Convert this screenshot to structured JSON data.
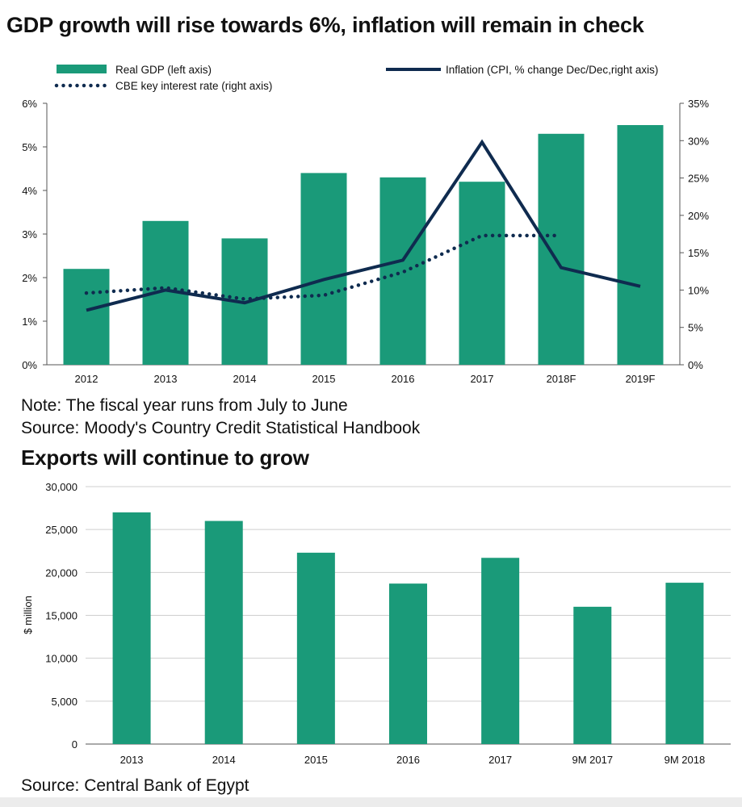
{
  "colors": {
    "bar": "#1a9a79",
    "line": "#0f2b4f",
    "axis": "#555555",
    "grid": "#cfcfcf"
  },
  "chart1_title": "GDP growth will rise towards 6%, inflation will remain in check",
  "chart1_note": "Note: The fiscal year runs from July to June",
  "chart1_source": "Source: Moody's Country Credit Statistical Handbook",
  "chart2_title": "Exports will continue to grow",
  "chart2_source": "Source: Central Bank of Egypt",
  "chart_data": [
    {
      "type": "bar",
      "title": "GDP growth will rise towards 6%, inflation will remain in check",
      "categories": [
        "2012",
        "2013",
        "2014",
        "2015",
        "2016",
        "2017",
        "2018F",
        "2019F"
      ],
      "series": [
        {
          "name": "Real GDP (left axis)",
          "kind": "bar",
          "axis": "left",
          "values": [
            2.2,
            3.3,
            2.9,
            4.4,
            4.3,
            4.2,
            5.3,
            5.5
          ]
        },
        {
          "name": "Inflation (CPI, % change Dec/Dec,right axis)",
          "kind": "line",
          "axis": "right",
          "values": [
            7.3,
            10.0,
            8.3,
            11.4,
            14.0,
            29.8,
            13.0,
            10.5
          ]
        },
        {
          "name": "CBE key interest rate (right axis)",
          "kind": "dotted-line",
          "axis": "right",
          "values": [
            9.6,
            10.3,
            8.8,
            9.3,
            12.4,
            17.3,
            17.3,
            null
          ]
        }
      ],
      "ylim_left": [
        0,
        6
      ],
      "yticks_left": [
        "0%",
        "1%",
        "2%",
        "3%",
        "4%",
        "5%",
        "6%"
      ],
      "ylim_right": [
        0,
        35
      ],
      "yticks_right": [
        "0%",
        "5%",
        "10%",
        "15%",
        "20%",
        "25%",
        "30%",
        "35%"
      ],
      "legend": [
        "Real GDP (left axis)",
        "Inflation (CPI, % change Dec/Dec,right axis)",
        "CBE key interest rate (right axis)"
      ],
      "legend_position": "top",
      "grid": false
    },
    {
      "type": "bar",
      "title": "Exports will continue to grow",
      "categories": [
        "2013",
        "2014",
        "2015",
        "2016",
        "2017",
        "9M 2017",
        "9M 2018"
      ],
      "values": [
        27000,
        26000,
        22300,
        18700,
        21700,
        16000,
        18800
      ],
      "ylabel": "$ million",
      "ylim": [
        0,
        30000
      ],
      "yticks": [
        "0",
        "5,000",
        "10,000",
        "15,000",
        "20,000",
        "25,000",
        "30,000"
      ],
      "grid": true
    }
  ]
}
